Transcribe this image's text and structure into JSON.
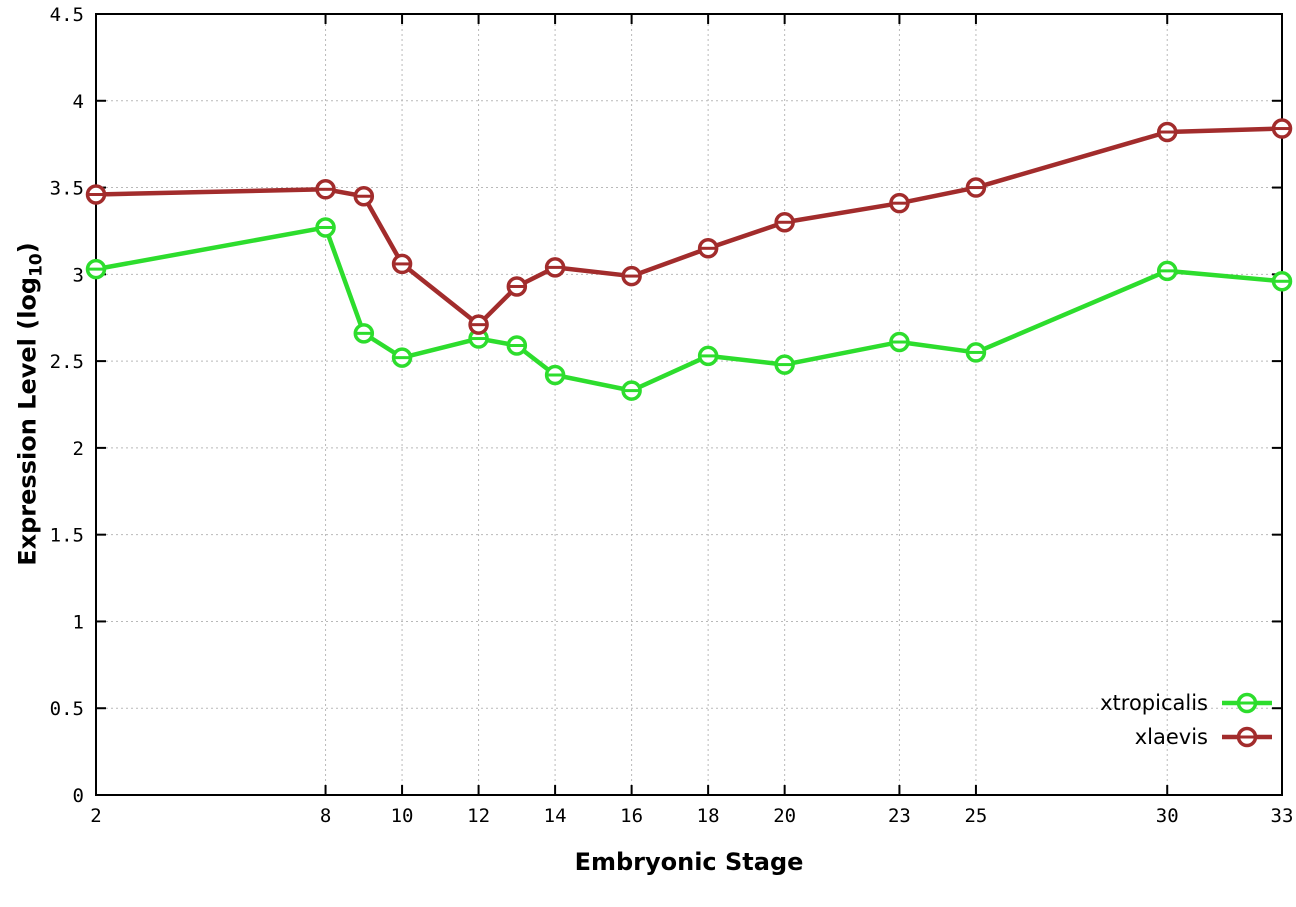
{
  "figure": {
    "xlabel": "Embryonic Stage",
    "ylabel_prefix": "Expression Level (log",
    "ylabel_sub": "10",
    "ylabel_suffix": ")"
  },
  "chart_data": {
    "type": "line",
    "title": "",
    "xlabel": "Embryonic Stage",
    "ylabel": "Expression Level (log10)",
    "x": [
      2,
      8,
      9,
      10,
      12,
      13,
      14,
      16,
      18,
      20,
      23,
      25,
      30,
      33
    ],
    "series": [
      {
        "name": "xtropicalis",
        "color": "#2ddd2d",
        "marker": "open-circle",
        "values": [
          3.03,
          3.27,
          2.66,
          2.52,
          2.63,
          2.59,
          2.42,
          2.33,
          2.53,
          2.48,
          2.61,
          2.55,
          3.02,
          2.96
        ]
      },
      {
        "name": "xlaevis",
        "color": "#a22c2c",
        "marker": "open-circle",
        "values": [
          3.46,
          3.49,
          3.45,
          3.06,
          2.71,
          2.93,
          3.04,
          2.99,
          3.15,
          3.3,
          3.41,
          3.5,
          3.82,
          3.84
        ]
      }
    ],
    "xticks": [
      2,
      8,
      10,
      12,
      14,
      16,
      18,
      20,
      23,
      25,
      30,
      33
    ],
    "yticks": [
      0,
      0.5,
      1,
      1.5,
      2,
      2.5,
      3,
      3.5,
      4,
      4.5
    ],
    "xlim": [
      2,
      33
    ],
    "ylim": [
      0,
      4.5
    ],
    "grid": true,
    "legend_position": "bottom-right",
    "legend_entries": [
      "xtropicalis",
      "xlaevis"
    ]
  }
}
